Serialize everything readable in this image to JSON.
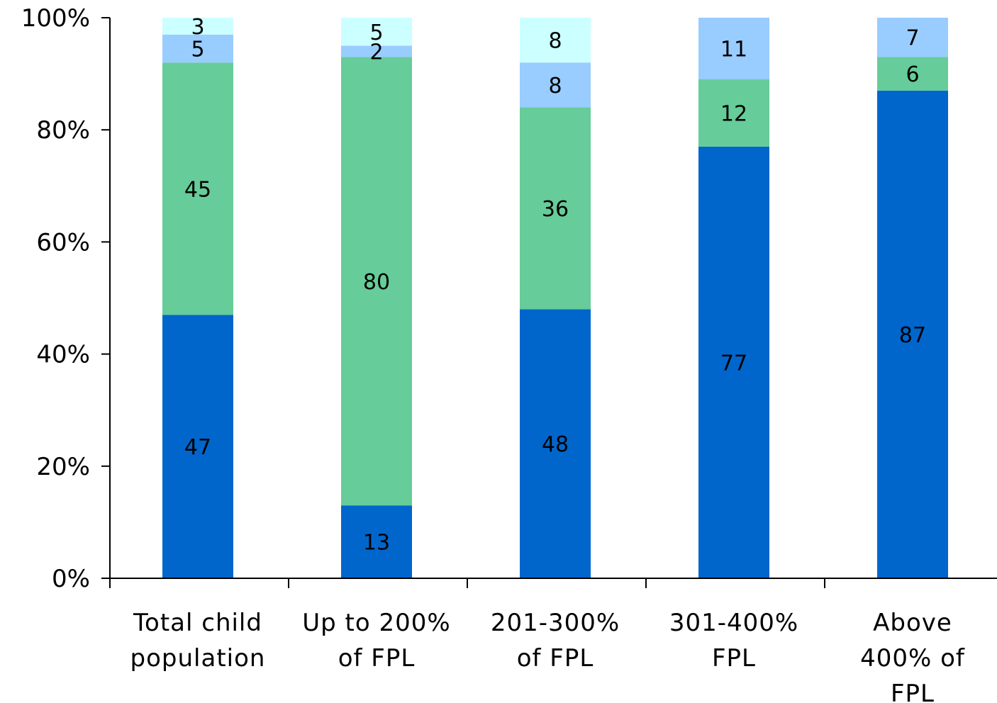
{
  "chart_data": {
    "type": "bar",
    "stacked": true,
    "categories": [
      [
        "Total child",
        "population"
      ],
      [
        "Up to 200%",
        "of FPL"
      ],
      [
        "201-300%",
        "of FPL"
      ],
      [
        "301-400%",
        "FPL"
      ],
      [
        "Above",
        "400% of",
        "FPL"
      ]
    ],
    "series": [
      {
        "color": "#0066CC",
        "values": [
          47,
          13,
          48,
          77,
          87
        ],
        "labels": [
          "47",
          "13",
          "48",
          "77",
          "87"
        ]
      },
      {
        "color": "#66CC99",
        "values": [
          45,
          80,
          36,
          12,
          6
        ],
        "labels": [
          "45",
          "80",
          "36",
          "12",
          "6"
        ]
      },
      {
        "color": "#99CCFF",
        "values": [
          5,
          2,
          8,
          11,
          7
        ],
        "labels": [
          "5",
          "2",
          "8",
          "11",
          "7"
        ]
      },
      {
        "color": "#CCFFFF",
        "values": [
          3,
          5,
          8,
          0,
          0
        ],
        "labels": [
          "3",
          "5",
          "8",
          "",
          ""
        ]
      }
    ],
    "ylim": [
      0,
      100
    ],
    "yticks": [
      "0%",
      "20%",
      "40%",
      "60%",
      "80%",
      "100%"
    ],
    "title": "",
    "xlabel": "",
    "ylabel": "",
    "grid": false,
    "legend": "none"
  }
}
